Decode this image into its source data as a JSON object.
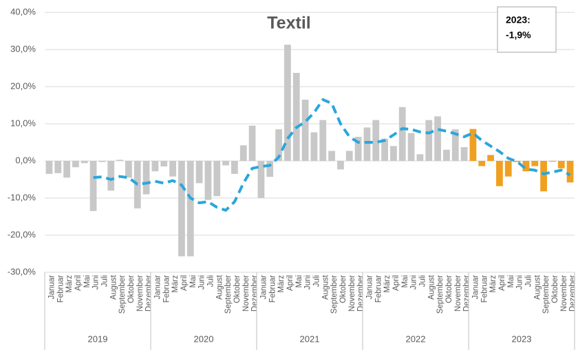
{
  "chart_data": {
    "type": "bar",
    "title": "Textil",
    "annotation": [
      "2023:",
      "-1,9%"
    ],
    "categories": [
      "Januar",
      "Februar",
      "März",
      "April",
      "Mai",
      "Juni",
      "Juli",
      "August",
      "September",
      "Oktober",
      "November",
      "Dezember",
      "Januar",
      "Februar",
      "März",
      "April",
      "Mai",
      "Juni",
      "Juli",
      "August",
      "September",
      "Oktober",
      "November",
      "Dezember",
      "Januar",
      "Februar",
      "März",
      "April",
      "Mai",
      "Juni",
      "Juli",
      "August",
      "September",
      "Oktober",
      "November",
      "Dezember",
      "Januar",
      "Februar",
      "März",
      "April",
      "Mai",
      "Juni",
      "Juli",
      "August",
      "September",
      "Oktober",
      "November",
      "Dezember",
      "Januar",
      "Februar",
      "März",
      "April",
      "Mai",
      "Juni",
      "Juli",
      "August",
      "September",
      "Oktober",
      "November",
      "Dezember"
    ],
    "groups": [
      "2019",
      "2020",
      "2021",
      "2022",
      "2023"
    ],
    "series": [
      {
        "type": "bar",
        "values": [
          -3.5,
          -3.3,
          -4.5,
          -1.7,
          -0.6,
          -13.5,
          -0.3,
          -8,
          0.3,
          -4.5,
          -12.8,
          -9,
          -2.8,
          -1.5,
          -4.2,
          -25.7,
          -25.7,
          -6,
          -10.5,
          -9.5,
          -1.2,
          -3.5,
          4.2,
          9.5,
          -10,
          -4.3,
          8.5,
          31.3,
          23.7,
          16.5,
          7.7,
          11,
          2.7,
          -2.3,
          2.7,
          6.5,
          9,
          11,
          6,
          4,
          14.5,
          7.5,
          1.8,
          11,
          12,
          3,
          8.5,
          3.7,
          8.6,
          -1.4,
          1.6,
          -6.8,
          -4.2,
          -0.3,
          -2.8,
          -1.4,
          -8.2,
          -0.2,
          -2,
          -5.8
        ],
        "colors": [
          "#c8c8c8",
          "#c8c8c8",
          "#c8c8c8",
          "#c8c8c8",
          "#c8c8c8",
          "#c8c8c8",
          "#c8c8c8",
          "#c8c8c8",
          "#c8c8c8",
          "#c8c8c8",
          "#c8c8c8",
          "#c8c8c8",
          "#c8c8c8",
          "#c8c8c8",
          "#c8c8c8",
          "#c8c8c8",
          "#c8c8c8",
          "#c8c8c8",
          "#c8c8c8",
          "#c8c8c8",
          "#c8c8c8",
          "#c8c8c8",
          "#c8c8c8",
          "#c8c8c8",
          "#c8c8c8",
          "#c8c8c8",
          "#c8c8c8",
          "#c8c8c8",
          "#c8c8c8",
          "#c8c8c8",
          "#c8c8c8",
          "#c8c8c8",
          "#c8c8c8",
          "#c8c8c8",
          "#c8c8c8",
          "#c8c8c8",
          "#c8c8c8",
          "#c8c8c8",
          "#c8c8c8",
          "#c8c8c8",
          "#c8c8c8",
          "#c8c8c8",
          "#c8c8c8",
          "#c8c8c8",
          "#c8c8c8",
          "#c8c8c8",
          "#c8c8c8",
          "#c8c8c8",
          "#f0a020",
          "#f0a020",
          "#f0a020",
          "#f0a020",
          "#f0a020",
          "#f0a020",
          "#f0a020",
          "#f0a020",
          "#f0a020",
          "#f0a020",
          "#f0a020",
          "#f0a020"
        ]
      },
      {
        "type": "line",
        "color": "#2aa6dc",
        "dashed": true,
        "values": [
          null,
          null,
          null,
          null,
          null,
          -4.5,
          -4.3,
          -5,
          -4.2,
          -4.5,
          -6.3,
          -6,
          -5.5,
          -6,
          -5.3,
          -6.5,
          -10,
          -11.3,
          -11,
          -12.5,
          -13.3,
          -11,
          -6,
          -2,
          -1.5,
          -1.2,
          1,
          6,
          9,
          10.5,
          13,
          16.5,
          15.5,
          10,
          6.5,
          5,
          5,
          5,
          5.5,
          7,
          8.7,
          8.5,
          7.8,
          7.5,
          8.5,
          8,
          7.3,
          6.5,
          7.5,
          5.5,
          4,
          2.5,
          0.7,
          -0.2,
          -2.2,
          -2.5,
          -3.5,
          -3,
          -2.5,
          -3.8
        ]
      }
    ],
    "ylim": [
      -30,
      40
    ],
    "yticks": [
      {
        "value": -30,
        "label": "-30,0%"
      },
      {
        "value": -20,
        "label": "-20,0%"
      },
      {
        "value": -10,
        "label": "-10,0%"
      },
      {
        "value": 0,
        "label": "0,0%"
      },
      {
        "value": 10,
        "label": "10,0%"
      },
      {
        "value": 20,
        "label": "20,0%"
      },
      {
        "value": 30,
        "label": "30,0%"
      },
      {
        "value": 40,
        "label": "40,0%"
      }
    ],
    "grid": true
  }
}
